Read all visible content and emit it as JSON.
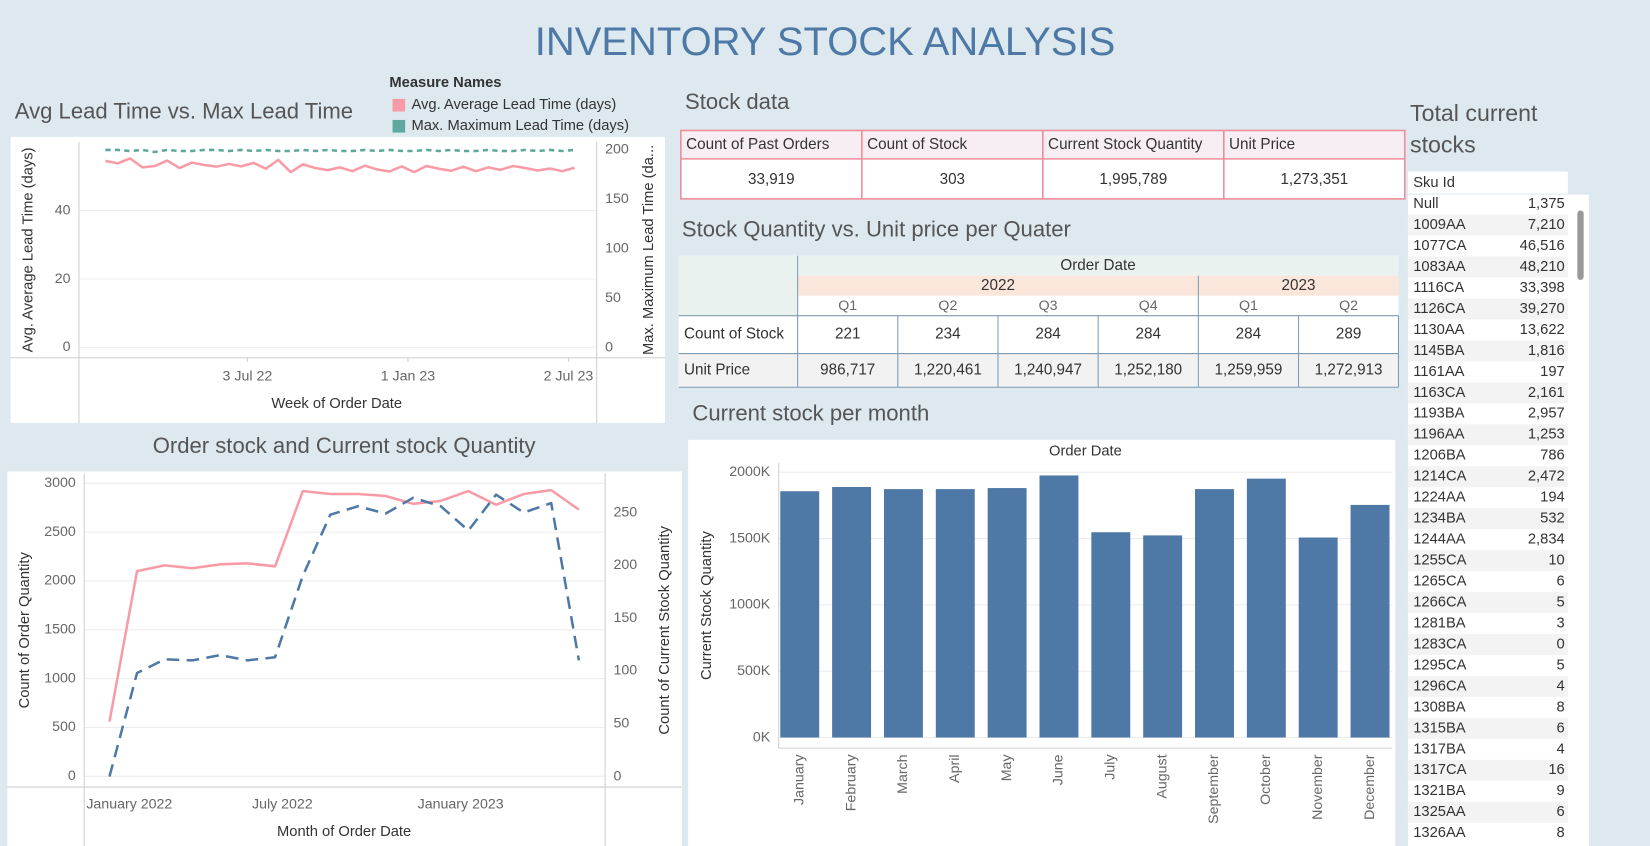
{
  "title": "INVENTORY STOCK ANALYSIS",
  "chart_data": [
    {
      "type": "line",
      "title": "Avg Lead Time vs. Max Lead Time",
      "legend_title": "Measure Names",
      "x_label": "Week of Order Date",
      "y_label": "Avg. Average Lead Time (days)",
      "y2_label": "Max. Maximum Lead Time (da...",
      "x": [
        "2022-01-23",
        "2022-02-06",
        "2022-02-20",
        "2022-03-06",
        "2022-03-20",
        "2022-04-03",
        "2022-04-17",
        "2022-05-01",
        "2022-05-15",
        "2022-05-29",
        "2022-06-12",
        "2022-06-26",
        "2022-07-10",
        "2022-07-24",
        "2022-08-07",
        "2022-08-21",
        "2022-09-04",
        "2022-09-18",
        "2022-10-02",
        "2022-10-16",
        "2022-10-30",
        "2022-11-13",
        "2022-11-27",
        "2022-12-11",
        "2022-12-25",
        "2023-01-08",
        "2023-01-22",
        "2023-02-05",
        "2023-02-19",
        "2023-03-05",
        "2023-03-19",
        "2023-04-02",
        "2023-04-16",
        "2023-04-30",
        "2023-05-14",
        "2023-05-28",
        "2023-06-11",
        "2023-06-25",
        "2023-07-09"
      ],
      "xlim": [
        "2021-12-24",
        "2023-08-03"
      ],
      "xticks": [
        {
          "value": "2022-07-03",
          "label": "3 Jul 22"
        },
        {
          "value": "2023-01-01",
          "label": "1 Jan 23"
        },
        {
          "value": "2023-07-02",
          "label": "2 Jul 23"
        }
      ],
      "ylim": [
        -3,
        60
      ],
      "yticks": [
        0,
        20,
        40
      ],
      "y2lim": [
        -10,
        208
      ],
      "y2ticks": [
        0,
        50,
        100,
        150,
        200
      ],
      "grid": true,
      "series": [
        {
          "name": "Avg. Average Lead Time (days)",
          "color": "#f89ba6",
          "values": [
            54.5,
            53.8,
            55.2,
            52.6,
            53.0,
            54.6,
            52.4,
            54.0,
            53.3,
            52.8,
            53.6,
            52.9,
            53.9,
            52.2,
            54.8,
            51.2,
            53.5,
            52.4,
            51.8,
            52.6,
            51.5,
            53.1,
            52.0,
            51.4,
            52.9,
            51.2,
            53.0,
            52.2,
            51.6,
            52.8,
            51.5,
            52.6,
            51.9,
            53.0,
            52.4,
            51.7,
            52.3,
            51.5,
            52.5
          ]
        },
        {
          "name": "Max. Maximum Lead Time (days)",
          "color": "#5fa8a0",
          "axis": "y2",
          "dashed": true,
          "values": [
            200,
            200,
            199,
            200,
            198,
            200,
            199,
            199,
            200,
            200,
            199,
            200,
            199,
            200,
            199,
            199,
            200,
            199,
            200,
            199,
            199,
            200,
            199,
            200,
            199,
            199,
            200,
            199,
            200,
            199,
            199,
            200,
            199,
            199,
            200,
            199,
            200,
            199,
            200
          ]
        }
      ]
    },
    {
      "type": "line",
      "title": "Order stock and Current stock  Quantity",
      "x_label": "Month of Order Date",
      "y_label": "Count of Order Quantity",
      "y2_label": "Count of Current Stock Quantity",
      "categories": [
        "January 2022",
        null,
        null,
        null,
        null,
        null,
        "July 2022",
        null,
        null,
        null,
        null,
        null,
        "January 2023",
        null,
        null,
        null,
        null,
        null
      ],
      "ylim": [
        -110,
        3100
      ],
      "yticks": [
        0,
        500,
        1000,
        1500,
        2000,
        2500,
        3000
      ],
      "y2lim": [
        -10,
        287
      ],
      "y2ticks": [
        0,
        50,
        100,
        150,
        200,
        250
      ],
      "grid": true,
      "series": [
        {
          "color": "#f89ba6",
          "values": [
            560,
            2100,
            2160,
            2130,
            2170,
            2180,
            2150,
            2920,
            2890,
            2890,
            2870,
            2790,
            2820,
            2920,
            2780,
            2890,
            2930,
            2730
          ]
        },
        {
          "color": "#4e79a7",
          "axis": "y2",
          "dashed": true,
          "values": [
            0,
            98,
            111,
            110,
            115,
            110,
            113,
            190,
            248,
            256,
            249,
            264,
            256,
            233,
            267,
            250,
            259,
            110
          ]
        }
      ]
    },
    {
      "type": "bar",
      "title": "Current stock per month",
      "header": "Order Date",
      "y_label": "Current Stock Quantity",
      "categories": [
        "January",
        "February",
        "March",
        "April",
        "May",
        "June",
        "July",
        "August",
        "September",
        "October",
        "November",
        "December"
      ],
      "values": [
        1857000,
        1889000,
        1873000,
        1873000,
        1881000,
        1976000,
        1548000,
        1524000,
        1873000,
        1952000,
        1508000,
        1754000
      ],
      "color": "#4e79a7",
      "ylim": [
        -80000,
        2070000
      ],
      "yticks": [
        {
          "value": 0,
          "label": "0K"
        },
        {
          "value": 500000,
          "label": "500K"
        },
        {
          "value": 1000000,
          "label": "1000K"
        },
        {
          "value": 1500000,
          "label": "1500K"
        },
        {
          "value": 2000000,
          "label": "2000K"
        }
      ],
      "grid": true
    }
  ],
  "stock_data": {
    "title": "Stock data",
    "headers": [
      "Count of Past Orders",
      "Count of Stock",
      "Current Stock Quantity",
      "Unit Price"
    ],
    "values": [
      "33,919",
      "303",
      "1,995,789",
      "1,273,351"
    ]
  },
  "quarter_table": {
    "title": "Stock Quantity vs. Unit price  per Quater",
    "column_header": "Order Date",
    "years": [
      {
        "label": "2022",
        "quarters": [
          "Q1",
          "Q2",
          "Q3",
          "Q4"
        ]
      },
      {
        "label": "2023",
        "quarters": [
          "Q1",
          "Q2"
        ]
      }
    ],
    "rows": [
      {
        "label": "Count of Stock",
        "values": [
          "221",
          "234",
          "284",
          "284",
          "284",
          "289"
        ]
      },
      {
        "label": "Unit Price",
        "values": [
          "986,717",
          "1,220,461",
          "1,240,947",
          "1,252,180",
          "1,259,959",
          "1,272,913"
        ]
      }
    ]
  },
  "sku_table": {
    "title": "Total current stocks",
    "header": "Sku Id",
    "rows": [
      [
        "Null",
        "1,375"
      ],
      [
        "1009AA",
        "7,210"
      ],
      [
        "1077CA",
        "46,516"
      ],
      [
        "1083AA",
        "48,210"
      ],
      [
        "1116CA",
        "33,398"
      ],
      [
        "1126CA",
        "39,270"
      ],
      [
        "1130AA",
        "13,622"
      ],
      [
        "1145BA",
        "1,816"
      ],
      [
        "1161AA",
        "197"
      ],
      [
        "1163CA",
        "2,161"
      ],
      [
        "1193BA",
        "2,957"
      ],
      [
        "1196AA",
        "1,253"
      ],
      [
        "1206BA",
        "786"
      ],
      [
        "1214CA",
        "2,472"
      ],
      [
        "1224AA",
        "194"
      ],
      [
        "1234BA",
        "532"
      ],
      [
        "1244AA",
        "2,834"
      ],
      [
        "1255CA",
        "10"
      ],
      [
        "1265CA",
        "6"
      ],
      [
        "1266CA",
        "5"
      ],
      [
        "1281BA",
        "3"
      ],
      [
        "1283CA",
        "0"
      ],
      [
        "1295CA",
        "5"
      ],
      [
        "1296CA",
        "4"
      ],
      [
        "1308BA",
        "8"
      ],
      [
        "1315BA",
        "6"
      ],
      [
        "1317BA",
        "4"
      ],
      [
        "1317CA",
        "16"
      ],
      [
        "1321BA",
        "9"
      ],
      [
        "1325AA",
        "6"
      ],
      [
        "1326AA",
        "8"
      ]
    ]
  }
}
